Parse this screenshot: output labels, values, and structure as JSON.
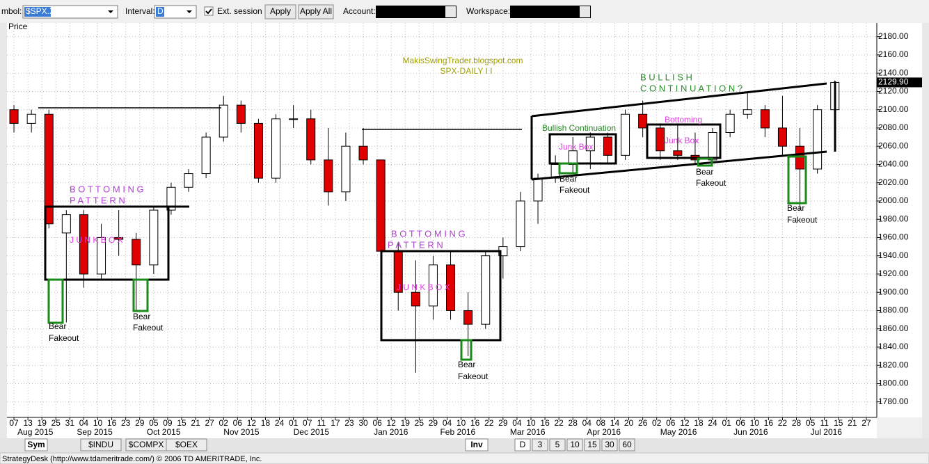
{
  "toolbar": {
    "symbol_label": "mbol:",
    "symbol": "$SPX.X",
    "interval_label": "Interval:",
    "interval": "D",
    "ext_session": "Ext. session",
    "apply": "Apply",
    "apply_all": "Apply All",
    "account_label": "Account:",
    "workspace_label": "Workspace:"
  },
  "chart_data": {
    "type": "candlestick",
    "title": "MakisSwingTrader.blogspot.com",
    "subtitle": "SPX-DAILY  I I",
    "y_label": "Price",
    "x": [
      0,
      5,
      10,
      15,
      20,
      25,
      30,
      35,
      40,
      45,
      50,
      55,
      60,
      65,
      70,
      75,
      80,
      85,
      90,
      95,
      100,
      105,
      110,
      115,
      120,
      125,
      130,
      135,
      140,
      145,
      150,
      155,
      160,
      165,
      170,
      175,
      180,
      185,
      190,
      195,
      200,
      205,
      210,
      215,
      220,
      225,
      230,
      235
    ],
    "open": [
      2100,
      2085,
      2095,
      1965,
      1985,
      1920,
      1960,
      1958,
      1930,
      1990,
      2015,
      2030,
      2070,
      2105,
      2085,
      2025,
      2090,
      2090,
      2045,
      2010,
      2060,
      2045,
      1945,
      1900,
      1885,
      1930,
      1880,
      1865,
      1940,
      1950,
      2000,
      2025,
      2040,
      2055,
      2070,
      2050,
      2095,
      2080,
      2055,
      2050,
      2045,
      2075,
      2095,
      2100,
      2080,
      2060,
      2035,
      2100
    ],
    "high": [
      2105,
      2100,
      2100,
      1990,
      1990,
      1975,
      1990,
      1965,
      1995,
      2020,
      2035,
      2075,
      2115,
      2110,
      2090,
      2095,
      2105,
      2100,
      2080,
      2075,
      2080,
      2045,
      1955,
      1935,
      1940,
      1945,
      1900,
      1945,
      1960,
      2010,
      2030,
      2050,
      2070,
      2075,
      2075,
      2100,
      2110,
      2085,
      2085,
      2075,
      2080,
      2100,
      2120,
      2105,
      2115,
      2080,
      2105,
      2132
    ],
    "low": [
      2075,
      2075,
      1970,
      1867,
      1905,
      1915,
      1940,
      1880,
      1920,
      1985,
      2010,
      2025,
      2065,
      2075,
      2020,
      2020,
      2080,
      2040,
      1995,
      2000,
      2040,
      1930,
      1880,
      1812,
      1870,
      1870,
      1830,
      1860,
      1915,
      1945,
      1975,
      2020,
      2030,
      2035,
      2040,
      2045,
      2070,
      2045,
      2045,
      2040,
      2040,
      2070,
      2090,
      2070,
      2050,
      1990,
      2030,
      2095
    ],
    "close": [
      2085,
      2095,
      1975,
      1985,
      1920,
      1960,
      1958,
      1930,
      1990,
      2015,
      2030,
      2070,
      2105,
      2085,
      2025,
      2090,
      2090,
      2045,
      2010,
      2060,
      2045,
      1945,
      1900,
      1885,
      1930,
      1880,
      1865,
      1940,
      1950,
      2000,
      2025,
      2040,
      2055,
      2070,
      2050,
      2095,
      2080,
      2055,
      2050,
      2045,
      2075,
      2095,
      2100,
      2080,
      2060,
      2035,
      2100,
      2129.9
    ],
    "colors": {
      "up": "#ffffff",
      "down": "#e00000"
    },
    "xlim": [
      -2,
      248
    ],
    "ylim": [
      1763,
      2195
    ],
    "yticks": [
      {
        "value": 1780,
        "label": "1780.00"
      },
      {
        "value": 1800,
        "label": "1800.00"
      },
      {
        "value": 1820,
        "label": "1820.00"
      },
      {
        "value": 1840,
        "label": "1840.00"
      },
      {
        "value": 1860,
        "label": "1860.00"
      },
      {
        "value": 1880,
        "label": "1880.00"
      },
      {
        "value": 1900,
        "label": "1900.00"
      },
      {
        "value": 1920,
        "label": "1920.00"
      },
      {
        "value": 1940,
        "label": "1940.00"
      },
      {
        "value": 1960,
        "label": "1960.00"
      },
      {
        "value": 1980,
        "label": "1980.00"
      },
      {
        "value": 2000,
        "label": "2000.00"
      },
      {
        "value": 2020,
        "label": "2020.00"
      },
      {
        "value": 2040,
        "label": "2040.00"
      },
      {
        "value": 2060,
        "label": "2060.00"
      },
      {
        "value": 2080,
        "label": "2080.00"
      },
      {
        "value": 2100,
        "label": "2100.00"
      },
      {
        "value": 2120,
        "label": "2120.00"
      },
      {
        "value": 2140,
        "label": "2140.00"
      },
      {
        "value": 2160,
        "label": "2160.00"
      },
      {
        "value": 2180,
        "label": "2180.00"
      }
    ],
    "xticks": [
      {
        "value": 0,
        "label": "07"
      },
      {
        "value": 4,
        "label": "13"
      },
      {
        "value": 8,
        "label": "19"
      },
      {
        "value": 12,
        "label": "25"
      },
      {
        "value": 16,
        "label": "31"
      },
      {
        "value": 20,
        "label": "04"
      },
      {
        "value": 24,
        "label": "10"
      },
      {
        "value": 28,
        "label": "16"
      },
      {
        "value": 32,
        "label": "23"
      },
      {
        "value": 36,
        "label": "29"
      },
      {
        "value": 40,
        "label": "05"
      },
      {
        "value": 44,
        "label": "09"
      },
      {
        "value": 48,
        "label": "15"
      },
      {
        "value": 52,
        "label": "21"
      },
      {
        "value": 56,
        "label": "27"
      },
      {
        "value": 60,
        "label": "02"
      },
      {
        "value": 64,
        "label": "06"
      },
      {
        "value": 68,
        "label": "12"
      },
      {
        "value": 72,
        "label": "18"
      },
      {
        "value": 76,
        "label": "24"
      },
      {
        "value": 80,
        "label": "01"
      },
      {
        "value": 84,
        "label": "07"
      },
      {
        "value": 88,
        "label": "11"
      },
      {
        "value": 92,
        "label": "17"
      },
      {
        "value": 96,
        "label": "23"
      },
      {
        "value": 100,
        "label": "30"
      },
      {
        "value": 104,
        "label": "06"
      },
      {
        "value": 108,
        "label": "12"
      },
      {
        "value": 112,
        "label": "19"
      },
      {
        "value": 116,
        "label": "25"
      },
      {
        "value": 120,
        "label": "29"
      },
      {
        "value": 124,
        "label": "04"
      },
      {
        "value": 128,
        "label": "10"
      },
      {
        "value": 132,
        "label": "16"
      },
      {
        "value": 136,
        "label": "22"
      },
      {
        "value": 140,
        "label": "29"
      },
      {
        "value": 144,
        "label": "04"
      },
      {
        "value": 148,
        "label": "10"
      },
      {
        "value": 152,
        "label": "16"
      },
      {
        "value": 156,
        "label": "22"
      },
      {
        "value": 160,
        "label": "28"
      },
      {
        "value": 164,
        "label": "04"
      },
      {
        "value": 168,
        "label": "08"
      },
      {
        "value": 172,
        "label": "14"
      },
      {
        "value": 176,
        "label": "20"
      },
      {
        "value": 180,
        "label": "26"
      },
      {
        "value": 184,
        "label": "02"
      },
      {
        "value": 188,
        "label": "06"
      },
      {
        "value": 192,
        "label": "12"
      },
      {
        "value": 196,
        "label": "18"
      },
      {
        "value": 200,
        "label": "24"
      },
      {
        "value": 204,
        "label": "01"
      },
      {
        "value": 208,
        "label": "06"
      },
      {
        "value": 212,
        "label": "10"
      },
      {
        "value": 216,
        "label": "16"
      },
      {
        "value": 220,
        "label": "22"
      },
      {
        "value": 224,
        "label": "28"
      },
      {
        "value": 228,
        "label": "05"
      },
      {
        "value": 232,
        "label": "11"
      },
      {
        "value": 236,
        "label": "15"
      },
      {
        "value": 240,
        "label": "21"
      },
      {
        "value": 244,
        "label": "27"
      }
    ],
    "month_labels": [
      {
        "value": 1,
        "label": "Aug 2015"
      },
      {
        "value": 18,
        "label": "Sep 2015"
      },
      {
        "value": 38,
        "label": "Oct 2015"
      },
      {
        "value": 60,
        "label": "Nov 2015"
      },
      {
        "value": 80,
        "label": "Dec 2015"
      },
      {
        "value": 103,
        "label": "Jan 2016"
      },
      {
        "value": 122,
        "label": "Feb 2016"
      },
      {
        "value": 142,
        "label": "Mar 2016"
      },
      {
        "value": 164,
        "label": "Apr 2016"
      },
      {
        "value": 185,
        "label": "May 2016"
      },
      {
        "value": 206,
        "label": "Jun 2016"
      },
      {
        "value": 228,
        "label": "Jul 2016"
      }
    ],
    "last_price": {
      "value": 2129.9,
      "label": "2129.90"
    },
    "grid": true,
    "annotations": [
      "B O T T O M I N G",
      "P A T T E R N",
      "J U N K   B O X",
      "Bear",
      "Fakeout",
      "Bear",
      "Fakeout",
      "B O T T O M I N G",
      "P A T T E R N",
      "J U N K   B O X",
      "Bear",
      "Fakeout",
      "B U L L I S H",
      "C O N T I N U A T I O N ?",
      "Bullish Continuation",
      "Junk Box",
      "Bear",
      "Fakeout",
      "Bottoming",
      "Junk Box",
      "Bear",
      "Fakeout",
      "Bear",
      "Fakeout"
    ]
  },
  "tabs": [
    "Sym",
    "$INDU",
    "$COMPX",
    "$OEX",
    "Inv"
  ],
  "intervals": [
    "D",
    "3",
    "5",
    "10",
    "15",
    "30",
    "60"
  ],
  "status": "StrategyDesk (http://www.tdameritrade.com/) © 2006 TD AMERITRADE, Inc."
}
